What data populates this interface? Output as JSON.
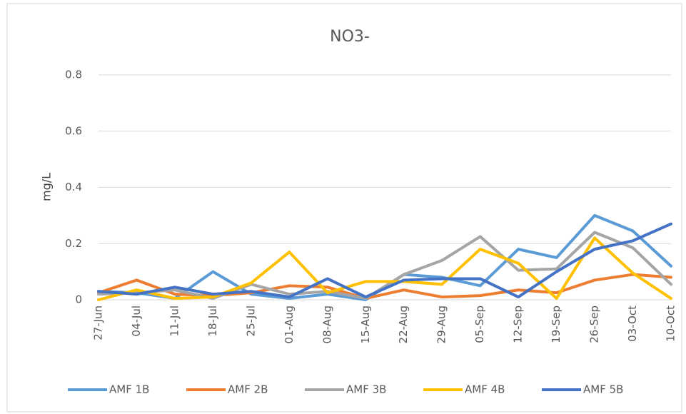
{
  "chart_data": {
    "type": "line",
    "title": "NO3-",
    "y_label": "mg/L",
    "categories": [
      "27-Jun",
      "04-Jul",
      "11-Jul",
      "18-Jul",
      "25-Jul",
      "01-Aug",
      "08-Aug",
      "15-Aug",
      "22-Aug",
      "29-Aug",
      "05-Sep",
      "12-Sep",
      "19-Sep",
      "26-Sep",
      "03-Oct",
      "10-Oct"
    ],
    "series": [
      {
        "name": "AMF 1B",
        "color": "#5b9bd5",
        "values": [
          0.03,
          0.025,
          0.005,
          0.1,
          0.02,
          0.005,
          0.02,
          0,
          0.09,
          0.08,
          0.05,
          0.18,
          0.15,
          0.3,
          0.245,
          0.12
        ]
      },
      {
        "name": "AMF 2B",
        "color": "#ed7d31",
        "values": [
          0.025,
          0.07,
          0.02,
          0.015,
          0.025,
          0.05,
          0.045,
          0.005,
          0.035,
          0.01,
          0.015,
          0.035,
          0.025,
          0.07,
          0.09,
          0.08
        ]
      },
      {
        "name": "AMF 3B",
        "color": "#a5a5a5",
        "values": [
          0.02,
          0.025,
          0.035,
          0.005,
          0.055,
          0.02,
          0.03,
          0.005,
          0.09,
          0.14,
          0.225,
          0.105,
          0.11,
          0.24,
          0.185,
          0.055
        ]
      },
      {
        "name": "AMF 4B",
        "color": "#ffc000",
        "values": [
          0,
          0.035,
          0.005,
          0.01,
          0.06,
          0.17,
          0.025,
          0.065,
          0.065,
          0.055,
          0.18,
          0.13,
          0.005,
          0.22,
          0.095,
          0.005
        ]
      },
      {
        "name": "AMF 5B",
        "color": "#4472c4",
        "values": [
          0.03,
          0.02,
          0.045,
          0.02,
          0.03,
          0.01,
          0.075,
          0.01,
          0.07,
          0.075,
          0.075,
          0.01,
          0.1,
          0.18,
          0.21,
          0.27
        ]
      }
    ],
    "ylim": [
      0,
      0.8
    ],
    "yticks": [
      0,
      0.2,
      0.4,
      0.6,
      0.8
    ],
    "grid": true,
    "legend": "bottom"
  }
}
